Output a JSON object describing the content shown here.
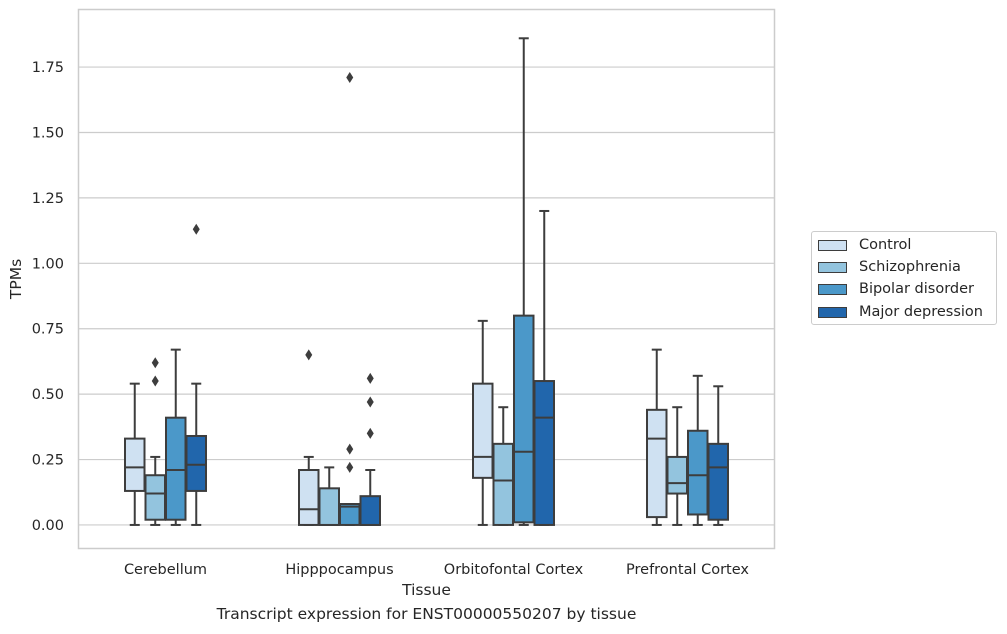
{
  "chart_data": {
    "type": "box",
    "title": "Transcript expression for ENST00000550207 by tissue",
    "xlabel": "Tissue",
    "ylabel": "TPMs",
    "ylim": [
      -0.09,
      1.97
    ],
    "yticks": [
      "0.00",
      "0.25",
      "0.50",
      "0.75",
      "1.00",
      "1.25",
      "1.50",
      "1.75"
    ],
    "ytick_values": [
      0,
      0.25,
      0.5,
      0.75,
      1.0,
      1.25,
      1.5,
      1.75
    ],
    "grid": "horizontal",
    "legend_position": "outside-right",
    "categories": [
      "Cerebellum",
      "Hipppocampus",
      "Orbitofontal Cortex",
      "Prefrontal Cortex"
    ],
    "series": [
      {
        "name": "Control",
        "color": "#cfe1f2",
        "boxes": [
          {
            "whisker_low": 0.0,
            "q1": 0.13,
            "median": 0.22,
            "q3": 0.33,
            "whisker_high": 0.54,
            "outliers": []
          },
          {
            "whisker_low": 0.0,
            "q1": 0.0,
            "median": 0.06,
            "q3": 0.21,
            "whisker_high": 0.26,
            "outliers": [
              0.65
            ]
          },
          {
            "whisker_low": 0.0,
            "q1": 0.18,
            "median": 0.26,
            "q3": 0.54,
            "whisker_high": 0.78,
            "outliers": []
          },
          {
            "whisker_low": 0.0,
            "q1": 0.03,
            "median": 0.33,
            "q3": 0.44,
            "whisker_high": 0.67,
            "outliers": []
          }
        ]
      },
      {
        "name": "Schizophrenia",
        "color": "#93c4de",
        "boxes": [
          {
            "whisker_low": 0.0,
            "q1": 0.02,
            "median": 0.12,
            "q3": 0.19,
            "whisker_high": 0.26,
            "outliers": [
              0.55,
              0.62
            ]
          },
          {
            "whisker_low": 0.0,
            "q1": 0.0,
            "median": 0.0,
            "q3": 0.14,
            "whisker_high": 0.22,
            "outliers": []
          },
          {
            "whisker_low": 0.0,
            "q1": 0.0,
            "median": 0.17,
            "q3": 0.31,
            "whisker_high": 0.45,
            "outliers": []
          },
          {
            "whisker_low": 0.0,
            "q1": 0.12,
            "median": 0.16,
            "q3": 0.26,
            "whisker_high": 0.45,
            "outliers": []
          }
        ]
      },
      {
        "name": "Bipolar disorder",
        "color": "#4b98c9",
        "boxes": [
          {
            "whisker_low": 0.0,
            "q1": 0.02,
            "median": 0.21,
            "q3": 0.41,
            "whisker_high": 0.67,
            "outliers": []
          },
          {
            "whisker_low": 0.0,
            "q1": 0.0,
            "median": 0.07,
            "q3": 0.08,
            "whisker_high": 0.08,
            "outliers": [
              0.22,
              0.29,
              1.71
            ]
          },
          {
            "whisker_low": 0.0,
            "q1": 0.01,
            "median": 0.28,
            "q3": 0.8,
            "whisker_high": 1.86,
            "outliers": []
          },
          {
            "whisker_low": 0.0,
            "q1": 0.04,
            "median": 0.19,
            "q3": 0.36,
            "whisker_high": 0.57,
            "outliers": []
          }
        ]
      },
      {
        "name": "Major depression",
        "color": "#2166ac",
        "boxes": [
          {
            "whisker_low": 0.0,
            "q1": 0.13,
            "median": 0.23,
            "q3": 0.34,
            "whisker_high": 0.54,
            "outliers": [
              1.13
            ]
          },
          {
            "whisker_low": 0.0,
            "q1": 0.0,
            "median": 0.0,
            "q3": 0.11,
            "whisker_high": 0.21,
            "outliers": [
              0.35,
              0.47,
              0.56
            ]
          },
          {
            "whisker_low": 0.0,
            "q1": 0.0,
            "median": 0.41,
            "q3": 0.55,
            "whisker_high": 1.2,
            "outliers": []
          },
          {
            "whisker_low": 0.0,
            "q1": 0.02,
            "median": 0.22,
            "q3": 0.31,
            "whisker_high": 0.53,
            "outliers": []
          }
        ]
      }
    ]
  }
}
